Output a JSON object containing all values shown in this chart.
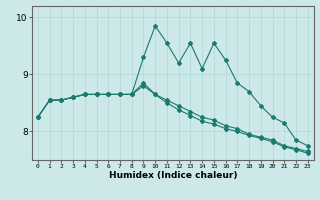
{
  "xlabel": "Humidex (Indice chaleur)",
  "ylabel": "",
  "bg_color": "#cce8e8",
  "line_color": "#1a7a6e",
  "xlim": [
    -0.5,
    23.5
  ],
  "ylim": [
    7.5,
    10.2
  ],
  "xticks": [
    0,
    1,
    2,
    3,
    4,
    5,
    6,
    7,
    8,
    9,
    10,
    11,
    12,
    13,
    14,
    15,
    16,
    17,
    18,
    19,
    20,
    21,
    22,
    23
  ],
  "yticks": [
    8,
    9,
    10
  ],
  "series1": [
    8.25,
    8.55,
    8.55,
    8.6,
    8.65,
    8.65,
    8.65,
    8.65,
    8.65,
    9.3,
    9.85,
    9.55,
    9.2,
    9.55,
    9.1,
    9.55,
    9.25,
    8.85,
    8.7,
    8.45,
    8.25,
    8.15,
    7.85,
    7.75
  ],
  "series2": [
    8.25,
    8.55,
    8.55,
    8.6,
    8.65,
    8.65,
    8.65,
    8.65,
    8.65,
    8.85,
    8.65,
    8.55,
    8.45,
    8.35,
    8.25,
    8.2,
    8.1,
    8.05,
    7.95,
    7.9,
    7.85,
    7.75,
    7.7,
    7.65
  ],
  "series3": [
    8.25,
    8.55,
    8.55,
    8.6,
    8.65,
    8.65,
    8.65,
    8.65,
    8.65,
    8.8,
    8.65,
    8.5,
    8.38,
    8.28,
    8.18,
    8.13,
    8.05,
    8.0,
    7.93,
    7.88,
    7.82,
    7.73,
    7.68,
    7.62
  ]
}
